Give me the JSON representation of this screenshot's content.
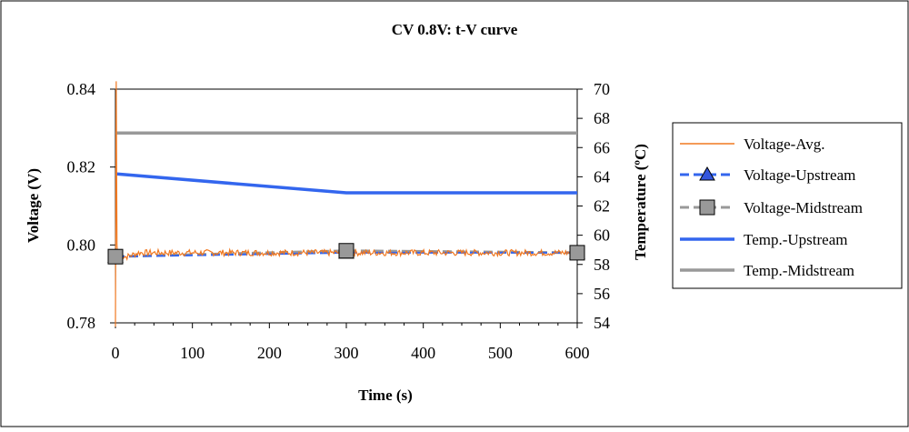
{
  "chart_data": {
    "type": "line",
    "title": "CV 0.8V: t-V curve",
    "xlabel": "Time (s)",
    "ylabel": "Voltage (V)",
    "y2label": "Temperature (ºC)",
    "xlim": [
      0,
      600
    ],
    "ylim": [
      0.78,
      0.84
    ],
    "y2lim": [
      54,
      70
    ],
    "x_ticks": [
      0,
      100,
      200,
      300,
      400,
      500,
      600
    ],
    "x_tick_labels": [
      "0",
      "100",
      "200",
      "300",
      "400",
      "500",
      "600"
    ],
    "y_ticks": [
      0.78,
      0.8,
      0.82,
      0.84
    ],
    "y_tick_labels": [
      "0.78",
      "0.80",
      "0.82",
      "0.84"
    ],
    "y2_ticks": [
      54,
      56,
      58,
      60,
      62,
      64,
      66,
      68,
      70
    ],
    "y2_tick_labels": [
      "54",
      "56",
      "58",
      "60",
      "62",
      "64",
      "66",
      "68",
      "70"
    ],
    "grid": false,
    "legend_position": "right",
    "series": [
      {
        "name": "Voltage-Avg.",
        "axis": "left",
        "color": "#f07820",
        "style": "noisy-line",
        "x": [
          0,
          1,
          2,
          3,
          5,
          8,
          15,
          30,
          60,
          100,
          150,
          200,
          250,
          300,
          350,
          400,
          450,
          500,
          550,
          600
        ],
        "values": [
          0.779,
          0.842,
          0.8,
          0.797,
          0.798,
          0.797,
          0.797,
          0.798,
          0.798,
          0.798,
          0.798,
          0.798,
          0.798,
          0.798,
          0.798,
          0.798,
          0.798,
          0.798,
          0.798,
          0.798
        ]
      },
      {
        "name": "Voltage-Upstream",
        "axis": "left",
        "color": "#3366ee",
        "marker_color": "#3355dd",
        "style": "dashed-triangle",
        "x": [
          0,
          300,
          600
        ],
        "values": [
          0.797,
          0.798,
          0.798
        ]
      },
      {
        "name": "Voltage-Midstream",
        "axis": "left",
        "color": "#999999",
        "marker_color": "#999999",
        "style": "dashed-square",
        "x": [
          0,
          300,
          600
        ],
        "values": [
          0.797,
          0.7985,
          0.798
        ]
      },
      {
        "name": "Temp.-Upstream",
        "axis": "right",
        "color": "#3366ee",
        "style": "solid",
        "x": [
          0,
          300,
          600
        ],
        "values": [
          64.2,
          62.9,
          62.9
        ]
      },
      {
        "name": "Temp.-Midstream",
        "axis": "right",
        "color": "#999999",
        "style": "solid",
        "x": [
          0,
          600
        ],
        "values": [
          67,
          67
        ]
      }
    ]
  }
}
